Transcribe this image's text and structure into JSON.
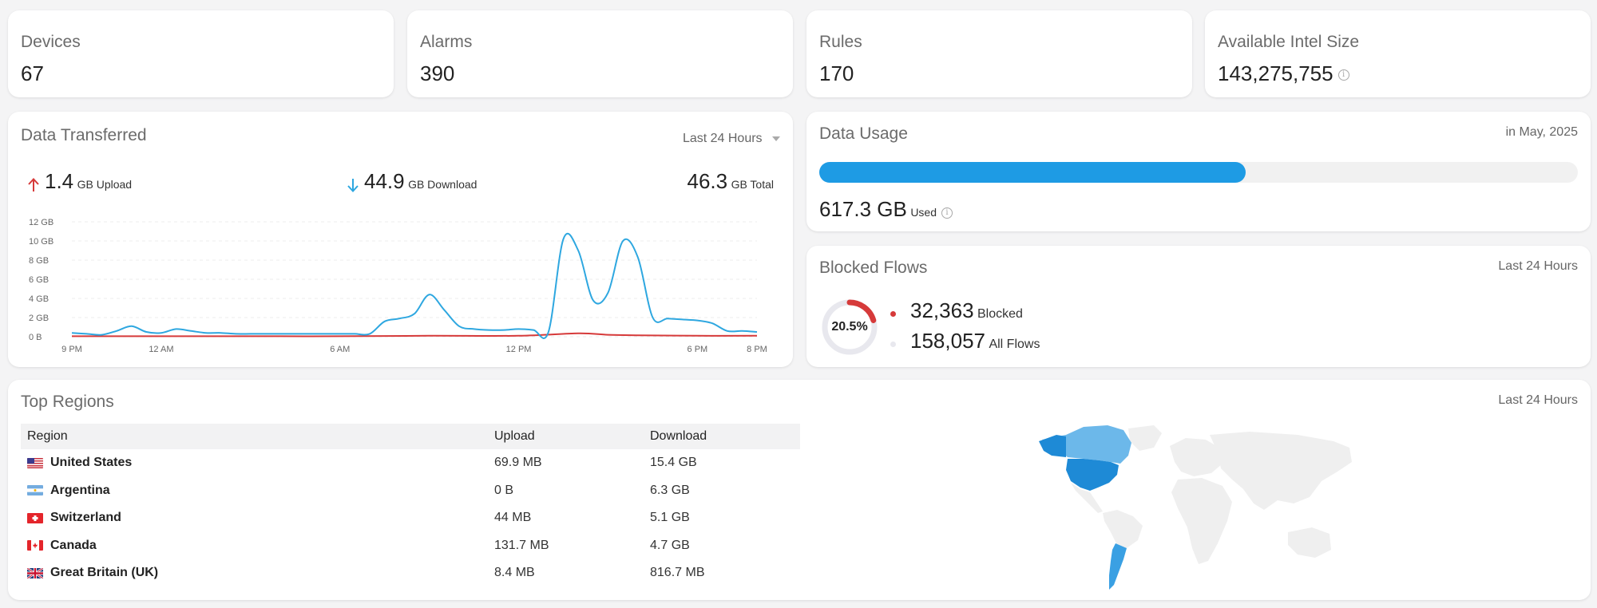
{
  "stats": [
    {
      "label": "Devices",
      "value": "67"
    },
    {
      "label": "Alarms",
      "value": "390"
    },
    {
      "label": "Rules",
      "value": "170"
    },
    {
      "label": "Available Intel Size",
      "value": "143,275,755",
      "info": "i"
    }
  ],
  "data_transferred": {
    "title": "Data Transferred",
    "range": "Last 24 Hours",
    "upload_value": "1.4",
    "upload_unit": "GB Upload",
    "download_value": "44.9",
    "download_unit": "GB Download",
    "total_value": "46.3",
    "total_unit": "GB Total",
    "colors": {
      "upload": "#d63a3a",
      "download": "#2ea7e0"
    }
  },
  "chart_data": {
    "type": "line",
    "title": "",
    "xlabel": "",
    "ylabel": "",
    "ylim": [
      0,
      12
    ],
    "y_ticks": [
      "0 B",
      "2 GB",
      "4 GB",
      "6 GB",
      "8 GB",
      "10 GB",
      "12 GB"
    ],
    "x_ticks": [
      {
        "label": "9 PM",
        "h": 0
      },
      {
        "label": "12 AM",
        "h": 3
      },
      {
        "label": "6 AM",
        "h": 9
      },
      {
        "label": "12 PM",
        "h": 15
      },
      {
        "label": "6 PM",
        "h": 21
      },
      {
        "label": "8 PM",
        "h": 23
      }
    ],
    "grid": true,
    "series": [
      {
        "name": "Download",
        "color": "#2ea7e0",
        "x": [
          0,
          0.5,
          1,
          1.5,
          2,
          2.5,
          3,
          3.5,
          4,
          4.5,
          5,
          5.5,
          6,
          6.5,
          7,
          7.5,
          8,
          8.5,
          9,
          9.5,
          10,
          10.5,
          11,
          11.5,
          12,
          12.5,
          13,
          13.5,
          14,
          14.5,
          15,
          15.5,
          16,
          16.5,
          17,
          17.5,
          18,
          18.5,
          19,
          19.5,
          20,
          20.5,
          21,
          21.5,
          22,
          22.5,
          23
        ],
        "values": [
          0.4,
          0.3,
          0.2,
          0.6,
          1.1,
          0.5,
          0.4,
          0.8,
          0.6,
          0.4,
          0.4,
          0.3,
          0.3,
          0.3,
          0.3,
          0.3,
          0.3,
          0.3,
          0.3,
          0.3,
          0.3,
          1.6,
          1.9,
          2.4,
          4.4,
          2.8,
          1.1,
          0.8,
          0.7,
          0.7,
          0.8,
          0.7,
          0.5,
          10.2,
          9.0,
          3.8,
          4.6,
          10.0,
          8.3,
          2.0,
          1.9,
          1.8,
          1.7,
          1.4,
          0.6,
          0.6,
          0.5
        ]
      },
      {
        "name": "Upload",
        "color": "#d63a3a",
        "x": [
          0,
          3,
          6,
          9,
          12,
          15,
          17,
          18,
          19,
          21,
          23
        ],
        "values": [
          0.05,
          0.05,
          0.05,
          0.05,
          0.1,
          0.1,
          0.35,
          0.2,
          0.15,
          0.1,
          0.1
        ]
      }
    ]
  },
  "data_usage": {
    "title": "Data Usage",
    "period": "in May, 2025",
    "used_value": "617.3 GB",
    "used_label": "Used",
    "fill_fraction": 0.562,
    "info": "i",
    "color": "#1e9be4"
  },
  "blocked_flows": {
    "title": "Blocked Flows",
    "range": "Last 24 Hours",
    "percent": "20.5%",
    "fraction": 0.205,
    "blocked_value": "32,363",
    "blocked_label": "Blocked",
    "all_value": "158,057",
    "all_label": "All Flows",
    "colors": {
      "blocked": "#d63a3a",
      "all": "#e8e8ee"
    }
  },
  "top_regions": {
    "title": "Top Regions",
    "range": "Last 24 Hours",
    "columns": [
      "Region",
      "Upload",
      "Download"
    ],
    "rows": [
      {
        "flag": "us-flag",
        "region": "United States",
        "upload": "69.9 MB",
        "download": "15.4 GB"
      },
      {
        "flag": "ar-flag",
        "region": "Argentina",
        "upload": "0 B",
        "download": "6.3 GB"
      },
      {
        "flag": "ch-flag",
        "region": "Switzerland",
        "upload": "44 MB",
        "download": "5.1 GB"
      },
      {
        "flag": "ca-flag",
        "region": "Canada",
        "upload": "131.7 MB",
        "download": "4.7 GB"
      },
      {
        "flag": "gb-flag",
        "region": "Great Britain (UK)",
        "upload": "8.4 MB",
        "download": "816.7 MB"
      }
    ],
    "map_colors": {
      "base": "#efefef",
      "us": "#1e8ad6",
      "ca": "#6cb8ea",
      "ar": "#3aa0e3"
    }
  }
}
